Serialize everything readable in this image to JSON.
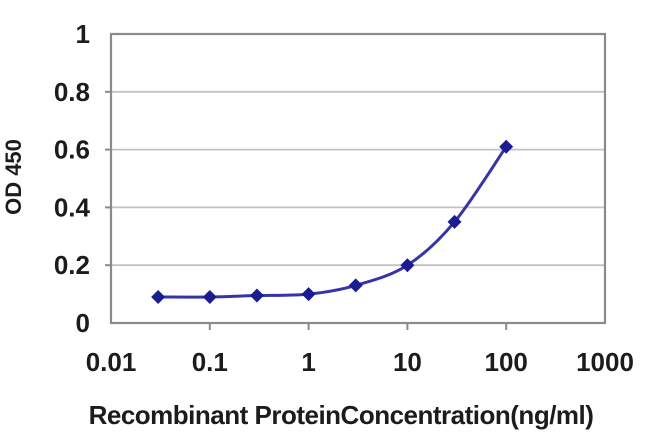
{
  "chart_data": {
    "type": "line",
    "title": "",
    "xlabel": "Recombinant ProteinConcentration(ng/ml)",
    "ylabel": "OD 450",
    "x_scale": "log",
    "x": [
      0.03,
      0.1,
      0.3,
      1,
      3,
      10,
      30,
      100
    ],
    "series": [
      {
        "name": "OD 450",
        "values": [
          0.09,
          0.09,
          0.095,
          0.1,
          0.13,
          0.2,
          0.35,
          0.61
        ]
      }
    ],
    "xlim": [
      0.01,
      1000
    ],
    "ylim": [
      0,
      1
    ],
    "x_ticks": [
      0.01,
      0.1,
      1,
      10,
      100,
      1000
    ],
    "x_tick_labels": [
      "0.01",
      "0.1",
      "1",
      "10",
      "100",
      "1000"
    ],
    "y_ticks": [
      0,
      0.2,
      0.4,
      0.6,
      0.8,
      1
    ],
    "y_tick_labels": [
      "0",
      "0.2",
      "0.4",
      "0.6",
      "0.8",
      "1"
    ],
    "grid": "horizontal",
    "legend": "none",
    "marker": "diamond",
    "line_style": "smooth",
    "colors": {
      "line": "#3535A8",
      "marker": "#1C1C92",
      "grid": "#C2C2C2",
      "axis_border": "#8A8A8A",
      "text": "#1C1C1C",
      "background": "#FFFFFF"
    }
  }
}
